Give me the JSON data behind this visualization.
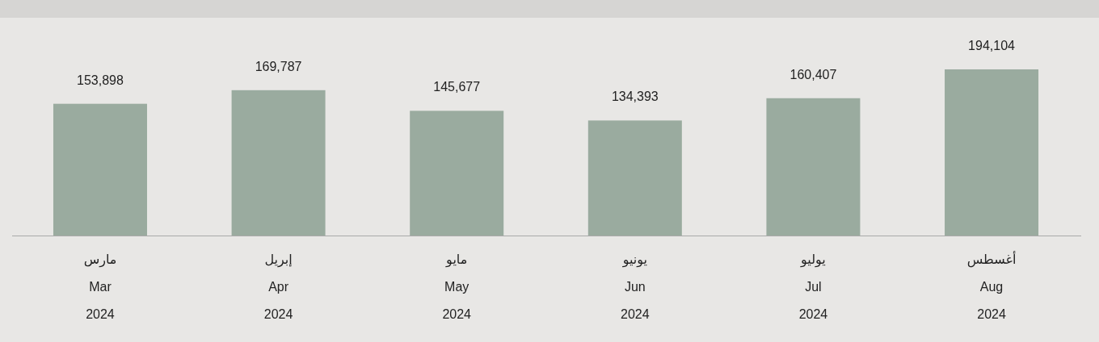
{
  "chart_data": {
    "type": "bar",
    "categories": [
      "مارس\nMar\n2024",
      "إبريل\nApr\n2024",
      "مايو\nMay\n2024",
      "يونيو\nJun\n2024",
      "يوليو\nJul\n2024",
      "أغسطس\nAug\n2024"
    ],
    "values": [
      153898,
      169787,
      145677,
      134393,
      160407,
      194104
    ],
    "value_labels": [
      "153,898",
      "169,787",
      "145,677",
      "134,393",
      "160,407",
      "194,104"
    ],
    "color": "#9aab9f"
  }
}
